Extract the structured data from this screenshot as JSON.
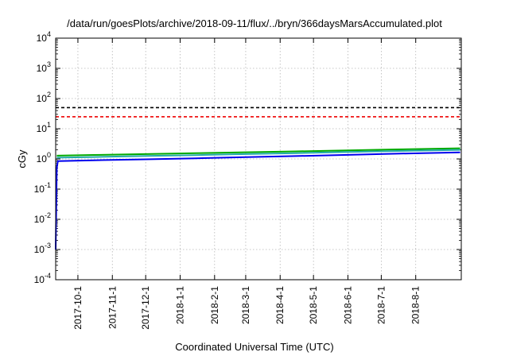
{
  "chart_data": {
    "type": "line",
    "title": "/data/run/goesPlots/archive/2018-09-11/flux/../bryn/366daysMarsAccumulated.plot",
    "xlabel": "Coordinated Universal Time (UTC)",
    "ylabel": "cGy",
    "yscale": "log",
    "ylim": [
      0.0001,
      10000
    ],
    "xlim": [
      "2017-09-11",
      "2018-09-11"
    ],
    "grid": true,
    "x_ticks": [
      "2017-10-1",
      "2017-11-1",
      "2017-12-1",
      "2018-1-1",
      "2018-2-1",
      "2018-3-1",
      "2018-4-1",
      "2018-5-1",
      "2018-6-1",
      "2018-7-1",
      "2018-8-1"
    ],
    "y_ticks": [
      {
        "value": 0.0001,
        "base": "10",
        "exp": "-4"
      },
      {
        "value": 0.001,
        "base": "10",
        "exp": "-3"
      },
      {
        "value": 0.01,
        "base": "10",
        "exp": "-2"
      },
      {
        "value": 0.1,
        "base": "10",
        "exp": "-1"
      },
      {
        "value": 1,
        "base": "10",
        "exp": "0"
      },
      {
        "value": 10,
        "base": "10",
        "exp": "1"
      },
      {
        "value": 100,
        "base": "10",
        "exp": "2"
      },
      {
        "value": 1000,
        "base": "10",
        "exp": "3"
      },
      {
        "value": 10000,
        "base": "10",
        "exp": "4"
      }
    ],
    "series": [
      {
        "color": "#00aa00",
        "style": "solid",
        "x": [
          "2017-09-12",
          "2017-10-15",
          "2017-12-01",
          "2018-01-15",
          "2018-03-01",
          "2018-04-15",
          "2018-06-01",
          "2018-07-15",
          "2018-09-10"
        ],
        "y": [
          1.28,
          1.35,
          1.45,
          1.55,
          1.66,
          1.78,
          1.92,
          2.07,
          2.25
        ]
      },
      {
        "color": "#22aaaa",
        "style": "solid",
        "x": [
          "2017-09-12",
          "2017-10-15",
          "2017-12-01",
          "2018-01-15",
          "2018-03-01",
          "2018-04-15",
          "2018-06-01",
          "2018-07-15",
          "2018-09-10"
        ],
        "y": [
          1.1,
          1.16,
          1.25,
          1.34,
          1.45,
          1.56,
          1.69,
          1.83,
          2.0
        ]
      },
      {
        "color": "#0000ee",
        "style": "solid",
        "x": [
          "2017-09-11",
          "2017-09-12",
          "2017-09-13",
          "2017-10-15",
          "2017-12-01",
          "2018-01-15",
          "2018-03-01",
          "2018-04-15",
          "2018-06-01",
          "2018-07-15",
          "2018-09-10"
        ],
        "y": [
          0.001,
          0.5,
          0.85,
          0.9,
          0.97,
          1.05,
          1.14,
          1.24,
          1.36,
          1.49,
          1.65
        ]
      },
      {
        "color": "#000000",
        "style": "dashed",
        "x": [
          "2017-09-11",
          "2018-09-11"
        ],
        "y": [
          50,
          50
        ]
      },
      {
        "color": "#ee0000",
        "style": "dashed",
        "x": [
          "2017-09-11",
          "2018-09-11"
        ],
        "y": [
          25,
          25
        ]
      }
    ]
  }
}
